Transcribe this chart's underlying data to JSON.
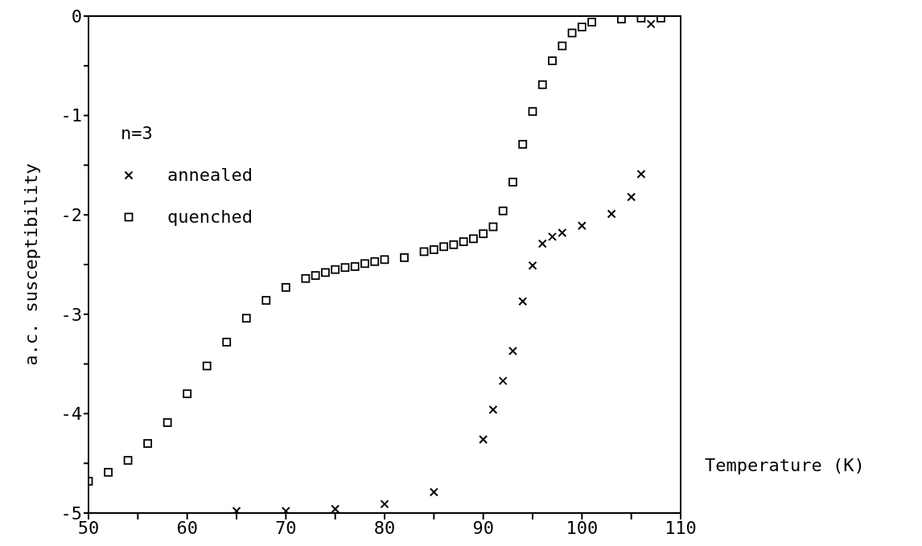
{
  "chart_data": {
    "type": "scatter",
    "xlabel": "Temperature (K)",
    "ylabel": "a.c. susceptibility",
    "legend_title": "n=3",
    "legend": "top left",
    "xlim": [
      50,
      110
    ],
    "ylim": [
      -5,
      0
    ],
    "xticks": [
      50,
      {
        "value": 55,
        "label": null
      },
      60,
      {
        "value": 65,
        "label": null
      },
      70,
      {
        "value": 75,
        "label": null
      },
      80,
      {
        "value": 85,
        "label": null
      },
      90,
      {
        "value": 95,
        "label": null
      },
      100,
      {
        "value": 105,
        "label": null
      },
      110
    ],
    "yticks": [
      -5,
      {
        "value": -4.5,
        "label": null
      },
      -4,
      {
        "value": -3.5,
        "label": null
      },
      -3,
      {
        "value": -2.5,
        "label": null
      },
      -2,
      {
        "value": -1.5,
        "label": null
      },
      -1,
      {
        "value": -0.5,
        "label": null
      },
      0
    ],
    "grid": false,
    "series": [
      {
        "name": "annealed",
        "color": "#000000",
        "marker": "cross",
        "x": [
          65,
          70,
          75,
          80,
          85,
          90,
          91,
          92,
          93,
          94,
          95,
          96,
          97,
          98,
          100,
          103,
          105,
          106,
          107
        ],
        "values": [
          -4.98,
          -4.98,
          -4.96,
          -4.91,
          -4.79,
          -4.26,
          -3.96,
          -3.67,
          -3.37,
          -2.87,
          -2.51,
          -2.29,
          -2.22,
          -2.18,
          -2.11,
          -1.99,
          -1.82,
          -1.59,
          -0.08
        ]
      },
      {
        "name": "quenched",
        "color": "#000000",
        "marker": "square",
        "x": [
          50,
          52,
          54,
          56,
          58,
          60,
          62,
          64,
          66,
          68,
          70,
          72,
          73,
          74,
          75,
          76,
          77,
          78,
          79,
          80,
          82,
          84,
          85,
          86,
          87,
          88,
          89,
          90,
          91,
          92,
          93,
          94,
          95,
          96,
          97,
          98,
          99,
          100,
          101,
          104,
          106,
          108
        ],
        "values": [
          -4.68,
          -4.59,
          -4.47,
          -4.3,
          -4.09,
          -3.8,
          -3.52,
          -3.28,
          -3.04,
          -2.86,
          -2.73,
          -2.64,
          -2.61,
          -2.58,
          -2.55,
          -2.53,
          -2.52,
          -2.49,
          -2.47,
          -2.45,
          -2.43,
          -2.37,
          -2.35,
          -2.32,
          -2.3,
          -2.27,
          -2.24,
          -2.19,
          -2.12,
          -1.96,
          -1.67,
          -1.29,
          -0.96,
          -0.69,
          -0.45,
          -0.3,
          -0.17,
          -0.11,
          -0.06,
          -0.03,
          -0.02,
          -0.02
        ]
      }
    ]
  }
}
